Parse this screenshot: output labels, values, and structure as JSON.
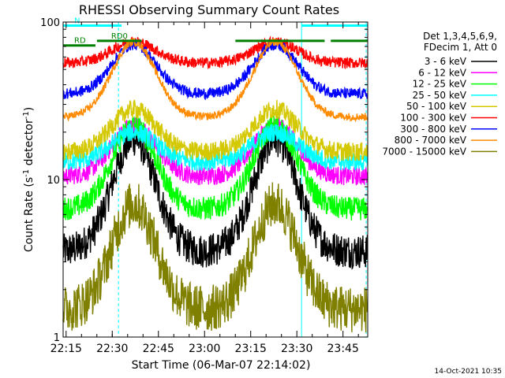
{
  "chart_data": {
    "type": "line",
    "title": "RHESSI Observing Summary Count Rates",
    "xlabel": "Start Time (06-Mar-07 22:14:02)",
    "ylabel_main": "Count Rate (s",
    "ylabel_sup1": "-1",
    "ylabel_mid": " detector",
    "ylabel_sup2": "-1",
    "ylabel_end": ")",
    "yscale": "log",
    "ylim": [
      1,
      100
    ],
    "xlim_minutes": [
      0,
      99
    ],
    "x_ticks": [
      {
        "min": 0.97,
        "label": "22:15"
      },
      {
        "min": 15.97,
        "label": "22:30"
      },
      {
        "min": 30.97,
        "label": "22:45"
      },
      {
        "min": 45.97,
        "label": "23:00"
      },
      {
        "min": 60.97,
        "label": "23:15"
      },
      {
        "min": 75.97,
        "label": "23:30"
      },
      {
        "min": 90.97,
        "label": "23:45"
      }
    ],
    "y_ticks": [
      {
        "value": 1,
        "label": "1"
      },
      {
        "value": 10,
        "label": "10"
      },
      {
        "value": 100,
        "label": "100"
      }
    ],
    "legend_header": [
      "Det 1,3,4,5,6,9,",
      "FDecim 1, Att 0"
    ],
    "legend_placement": "right",
    "series": [
      {
        "name": "3 - 6 keV",
        "color": "#000000",
        "min": 3.5,
        "max": 18,
        "noise": 0.22
      },
      {
        "name": "6 - 12 keV",
        "color": "#ff00ff",
        "min": 10.5,
        "max": 22,
        "noise": 0.12
      },
      {
        "name": "12 - 25 keV",
        "color": "#00ff00",
        "min": 6.5,
        "max": 22,
        "noise": 0.15
      },
      {
        "name": "25 - 50 keV",
        "color": "#00ffff",
        "min": 13,
        "max": 20,
        "noise": 0.12
      },
      {
        "name": "50 - 100 keV",
        "color": "#d4c800",
        "min": 15,
        "max": 28,
        "noise": 0.12
      },
      {
        "name": "100 - 300 keV",
        "color": "#ff0000",
        "min": 55,
        "max": 75,
        "noise": 0.07
      },
      {
        "name": "300 - 800 keV",
        "color": "#0000ff",
        "min": 35,
        "max": 72,
        "noise": 0.07
      },
      {
        "name": "800 - 7000 keV",
        "color": "#ff8c00",
        "min": 25,
        "max": 75,
        "noise": 0.05
      },
      {
        "name": "7000 - 15000 keV",
        "color": "#808000",
        "min": 1.5,
        "max": 7,
        "noise": 0.3
      }
    ],
    "peaks_minutes": [
      23,
      69
    ],
    "flags": [
      {
        "label": "N",
        "color": "#00ffff",
        "value": 95,
        "segments": [
          [
            0,
            19
          ],
          [
            77.5,
            99
          ]
        ]
      },
      {
        "label": "RD0",
        "color": "#008000",
        "value": 76,
        "segments": [
          [
            11,
            25.5
          ],
          [
            56,
            85
          ],
          [
            87,
            99
          ]
        ]
      },
      {
        "label": "RD",
        "color": "#008000",
        "value": 71,
        "segments": [
          [
            0,
            10.5
          ]
        ]
      }
    ],
    "vertical_lines": [
      {
        "min": 0,
        "color": "#00ffff",
        "style": "solid"
      },
      {
        "min": 18,
        "color": "#00ffff",
        "style": "dashed"
      },
      {
        "min": 77.5,
        "color": "#00ffff",
        "style": "solid"
      },
      {
        "min": 98.5,
        "color": "#00ffff",
        "style": "dashed"
      }
    ]
  },
  "footer": {
    "timestamp": "14-Oct-2021 10:35"
  }
}
